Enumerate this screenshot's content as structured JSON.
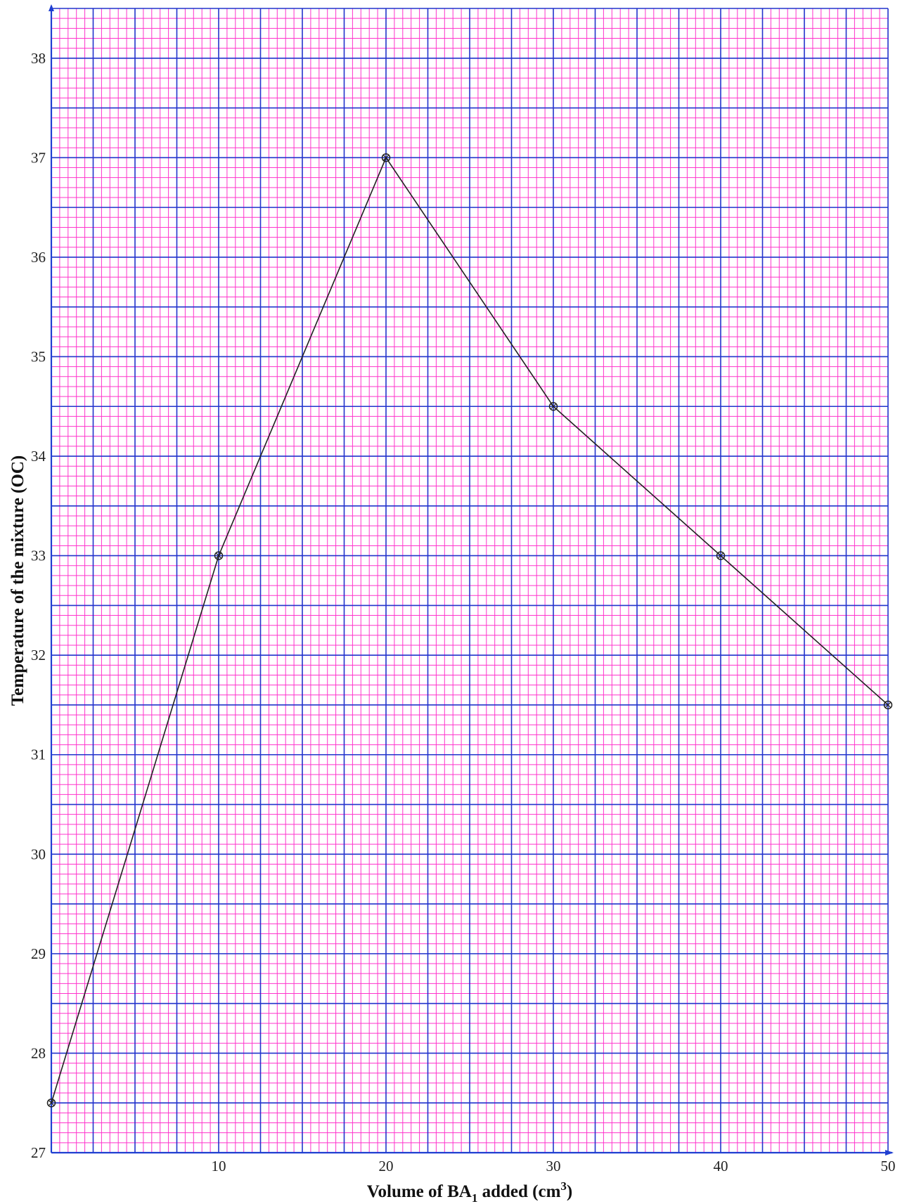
{
  "chart_data": {
    "type": "line",
    "title": "",
    "xlabel": "Volume of BA",
    "xlabel_sub": "1",
    "xlabel_tail": " added (cm",
    "xlabel_sup": "3",
    "xlabel_close": ")",
    "ylabel": "Temperature of the mixture (OC)",
    "xlim": [
      0,
      50
    ],
    "ylim": [
      27,
      38.5
    ],
    "x_ticks": [
      10,
      20,
      30,
      40,
      50
    ],
    "y_ticks": [
      27,
      28,
      29,
      30,
      31,
      32,
      33,
      34,
      35,
      36,
      37,
      38
    ],
    "grid": true,
    "colors": {
      "minor_grid": "#ff33cc",
      "major_grid": "#2233cc",
      "axis": "#1f3fd1",
      "line": "#222222",
      "background": "#ffffff"
    },
    "series": [
      {
        "x": [
          0,
          10,
          20,
          30,
          40,
          50
        ],
        "y": [
          27.5,
          33,
          37,
          34.5,
          33,
          31.5
        ]
      }
    ]
  }
}
